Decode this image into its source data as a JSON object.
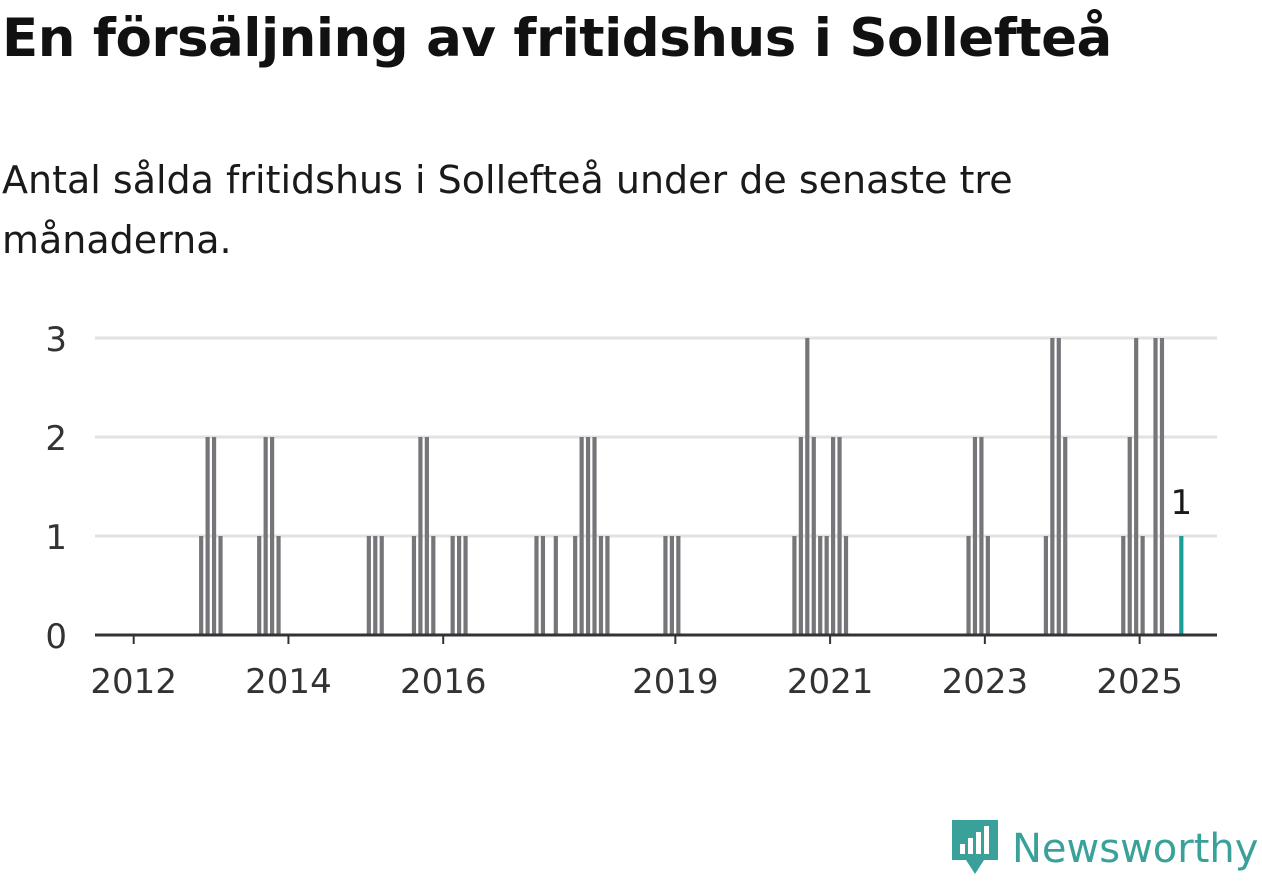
{
  "title": "En försäljning av fritidshus i Sollefteå",
  "subtitle": "Antal sålda fritidshus i Sollefteå under de senaste tre månaderna.",
  "brand": {
    "name": "Newsworthy",
    "icon": "newsworthy-logo-icon",
    "color": "#3aa19a"
  },
  "colors": {
    "bar": "#76767a",
    "highlight": "#1a9e98",
    "grid": "#e2e2e2",
    "axis": "#333333"
  },
  "chart_data": {
    "type": "bar",
    "title": "En försäljning av fritidshus i Sollefteå",
    "subtitle": "Antal sålda fritidshus i Sollefteå under de senaste tre månaderna.",
    "xlabel": "",
    "ylabel": "",
    "ylim": [
      0,
      3
    ],
    "yticks": [
      0,
      1,
      2,
      3
    ],
    "xticks": [
      "2012",
      "2014",
      "2016",
      "2019",
      "2021",
      "2023",
      "2025"
    ],
    "x_range": [
      "2011-07",
      "2026-01"
    ],
    "grid": true,
    "legend": "none",
    "highlight_label": "1",
    "series": [
      {
        "dates": [
          "2012-11",
          "2012-12",
          "2013-01",
          "2013-02",
          "2013-08",
          "2013-09",
          "2013-10",
          "2013-11",
          "2015-01",
          "2015-02",
          "2015-03",
          "2015-08",
          "2015-09",
          "2015-10",
          "2015-11",
          "2016-02",
          "2016-03",
          "2016-04",
          "2017-03",
          "2017-04",
          "2017-06",
          "2017-09",
          "2017-10",
          "2017-11",
          "2017-12",
          "2018-01",
          "2018-02",
          "2018-11",
          "2018-12",
          "2019-01",
          "2020-07",
          "2020-08",
          "2020-09",
          "2020-10",
          "2020-11",
          "2020-12",
          "2021-01",
          "2021-02",
          "2021-03",
          "2022-10",
          "2022-11",
          "2022-12",
          "2023-01",
          "2023-10",
          "2023-11",
          "2023-12",
          "2024-01",
          "2024-10",
          "2024-11",
          "2024-12",
          "2025-01",
          "2025-03",
          "2025-04",
          "2025-07"
        ],
        "values": [
          1,
          2,
          2,
          1,
          1,
          2,
          2,
          1,
          1,
          1,
          1,
          1,
          2,
          2,
          1,
          1,
          1,
          1,
          1,
          1,
          1,
          1,
          2,
          2,
          2,
          1,
          1,
          1,
          1,
          1,
          1,
          2,
          3,
          2,
          1,
          1,
          2,
          2,
          1,
          1,
          2,
          2,
          1,
          1,
          3,
          3,
          2,
          1,
          2,
          3,
          1,
          3,
          3,
          1
        ]
      }
    ]
  }
}
